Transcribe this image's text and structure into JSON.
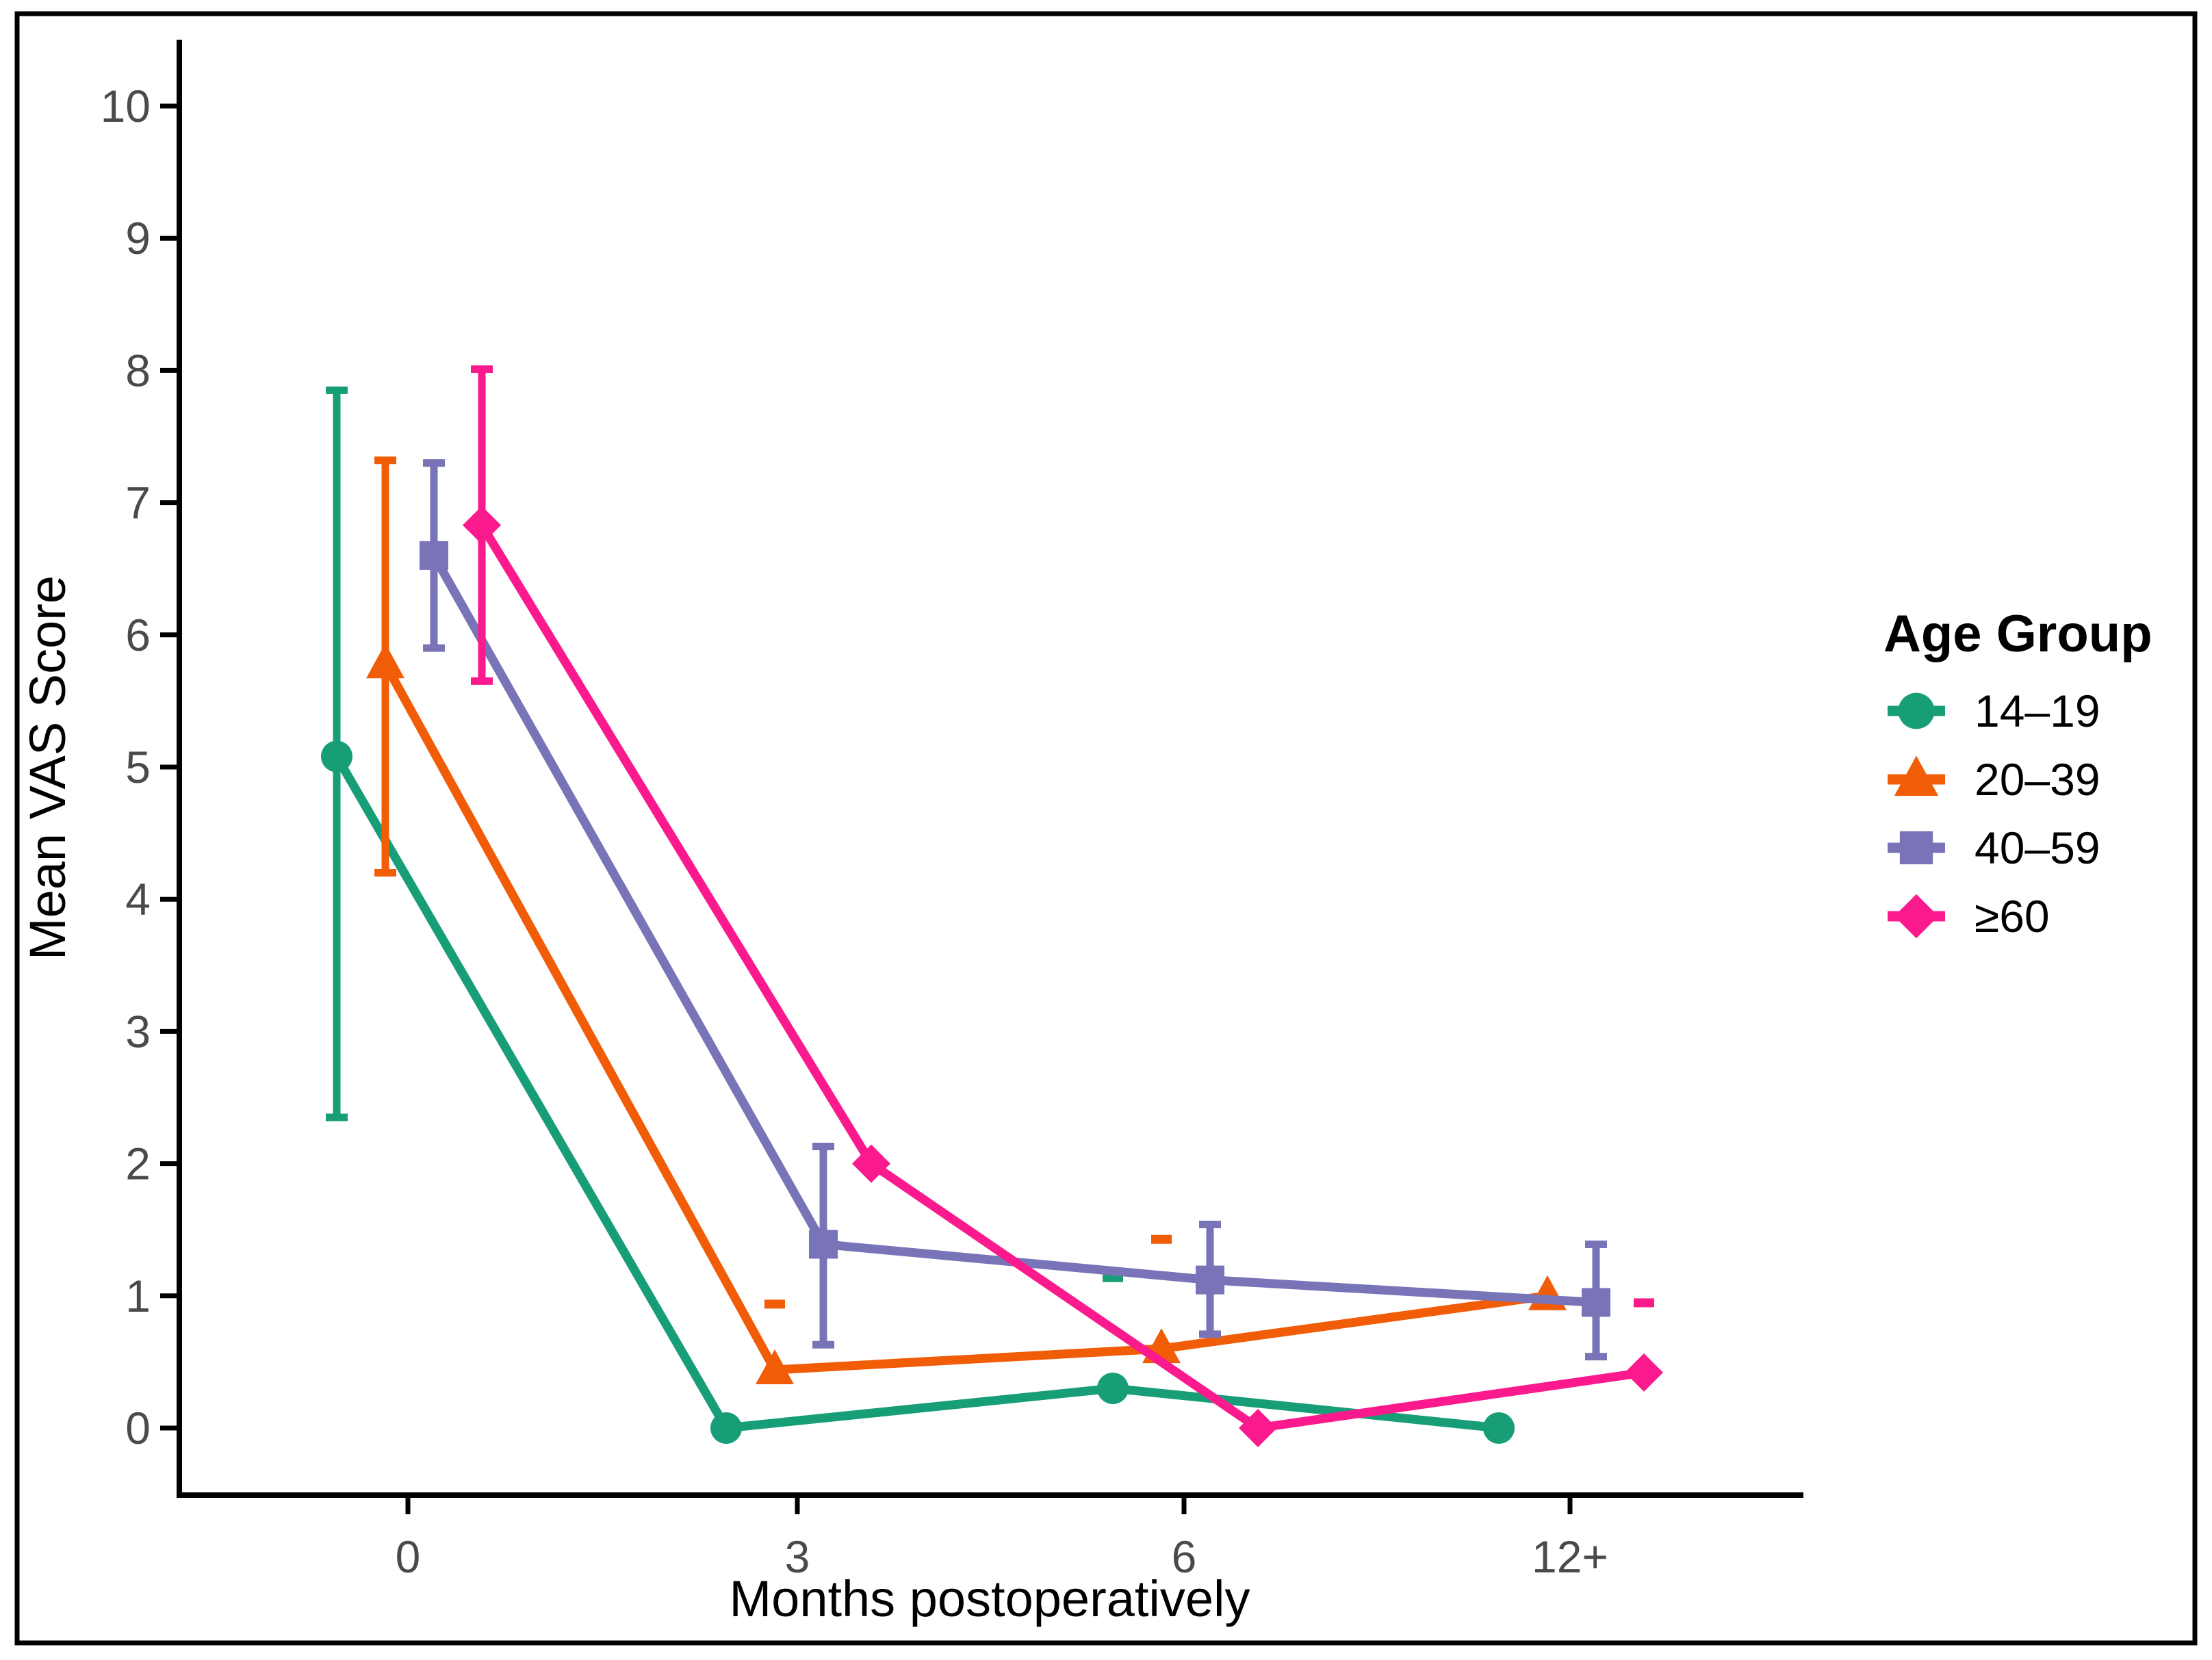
{
  "chart_data": {
    "type": "line",
    "title": "",
    "xlabel": "Months postoperatively",
    "ylabel": "Mean VAS Score",
    "x_categories": [
      "0",
      "3",
      "6",
      "12+"
    ],
    "yticks": [
      0,
      1,
      2,
      3,
      4,
      5,
      6,
      7,
      8,
      9,
      10
    ],
    "ylim": [
      0,
      10
    ],
    "grid": false,
    "legend_title": "Age Group",
    "legend_position": "right",
    "series": [
      {
        "name": "14–19",
        "marker": "circle",
        "color": "#179E77",
        "dodge": -104,
        "values": [
          5.08,
          0.0,
          0.3,
          0.0
        ],
        "error_low": [
          2.35,
          null,
          null,
          null
        ],
        "error_high": [
          7.85,
          null,
          null,
          null
        ],
        "extra_caps": [
          null,
          null,
          1.14,
          null
        ]
      },
      {
        "name": "20–39",
        "marker": "triangle",
        "color": "#F15C07",
        "dodge": -33,
        "values": [
          5.78,
          0.44,
          0.6,
          1.0
        ],
        "error_low": [
          4.2,
          null,
          null,
          null
        ],
        "error_high": [
          7.32,
          null,
          null,
          null
        ],
        "extra_caps": [
          null,
          0.94,
          1.43,
          null
        ]
      },
      {
        "name": "40–59",
        "marker": "square",
        "color": "#7974B8",
        "dodge": 38,
        "values": [
          6.6,
          1.39,
          1.12,
          0.95
        ],
        "error_low": [
          5.9,
          0.63,
          0.71,
          0.54
        ],
        "error_high": [
          7.3,
          2.13,
          1.54,
          1.39
        ],
        "extra_caps": [
          null,
          null,
          null,
          null
        ]
      },
      {
        "name": "≥60",
        "marker": "diamond",
        "color": "#FB1A8D",
        "dodge": 108,
        "values": [
          6.83,
          2.0,
          0.0,
          0.42
        ],
        "error_low": [
          5.65,
          null,
          null,
          null
        ],
        "error_high": [
          8.01,
          null,
          null,
          null
        ],
        "extra_caps": [
          null,
          null,
          null,
          0.95
        ]
      }
    ],
    "colors": {
      "axis": "#000000",
      "tick_label": "#4a4a4a",
      "border": "#000000",
      "background": "#ffffff"
    }
  }
}
